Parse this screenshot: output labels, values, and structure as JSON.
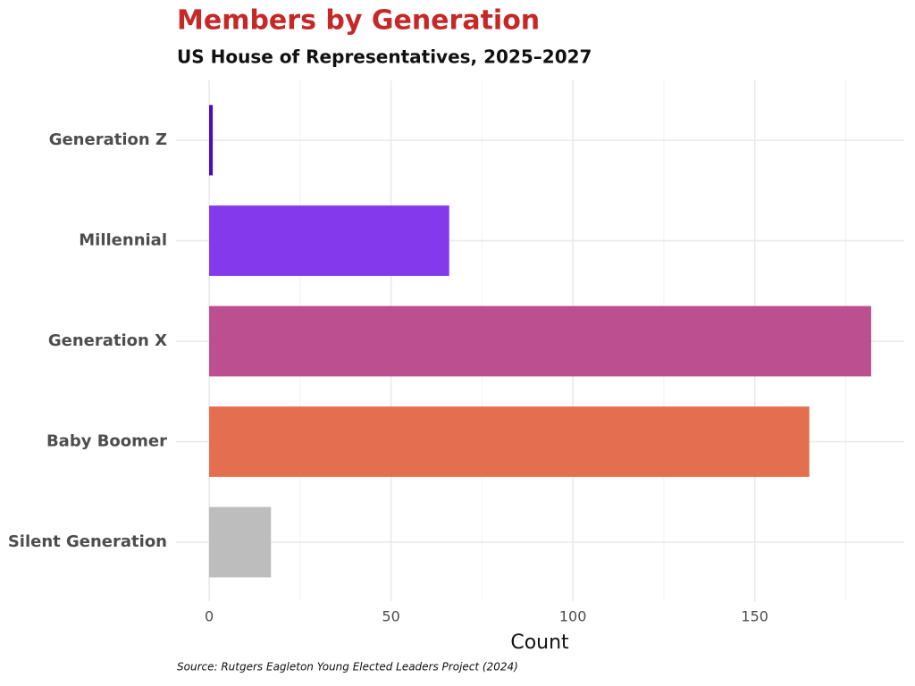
{
  "chart_data": {
    "type": "bar",
    "orientation": "horizontal",
    "title": "Members by Generation",
    "subtitle": "US House of Representatives, 2025–2027",
    "x_label": "Count",
    "source": "Source: Rutgers Eagleton Young Elected Leaders Project (2024)",
    "categories": [
      "Generation Z",
      "Millennial",
      "Generation X",
      "Baby Boomer",
      "Silent Generation"
    ],
    "values": [
      1,
      66,
      182,
      165,
      17
    ],
    "colors": [
      "#4a0fb2",
      "#8539ec",
      "#bc4f8f",
      "#e46f50",
      "#bdbdbd"
    ],
    "xlim": [
      -9.1,
      191.1
    ],
    "xticks": [
      0,
      50,
      100,
      150
    ],
    "xminor": [
      25,
      75,
      125,
      175
    ],
    "grid": true
  }
}
